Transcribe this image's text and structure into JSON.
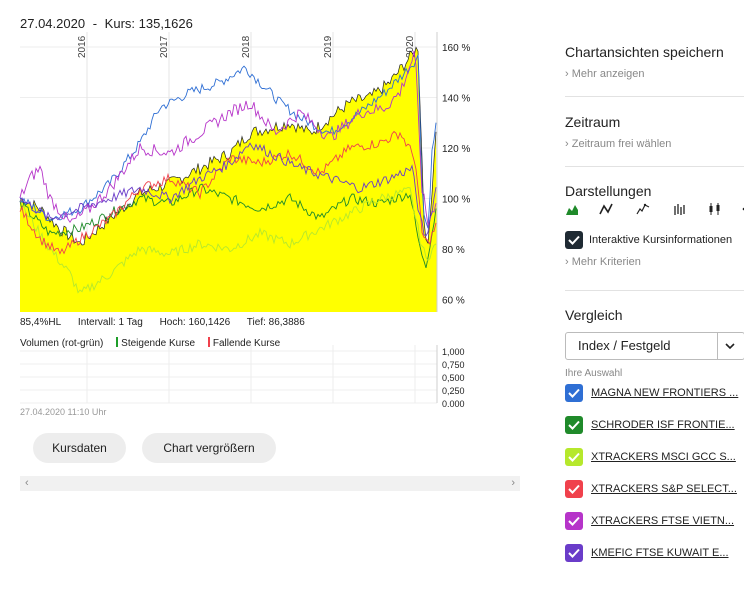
{
  "header": {
    "date": "27.04.2020",
    "separator": "-",
    "kurs": "Kurs: 135,1626"
  },
  "chart": {
    "x_axis_labels": [
      "2016",
      "2017",
      "2018",
      "2019",
      "2020"
    ],
    "y_axis_labels": [
      "160 %",
      "140 %",
      "120 %",
      "100 %",
      "80 %",
      "60 %"
    ],
    "y_range": [
      55,
      162
    ],
    "series_colors": {
      "area": "#ffff00",
      "blue": "#2f6fd4",
      "green": "#1f8a2a",
      "lime": "#b6e82c",
      "red": "#f0414c",
      "magenta": "#b634c9",
      "purple": "#6a3cc9"
    }
  },
  "stats": {
    "hl": "85,4%HL",
    "interval": "Intervall: 1 Tag",
    "hoch": "Hoch: 160,1426",
    "tief": "Tief: 86,3886"
  },
  "volume": {
    "label": "Volumen (rot-grün)",
    "rising": "Steigende Kurse",
    "falling": "Fallende Kurse",
    "y_axis_labels": [
      "1,000",
      "0,750",
      "0,500",
      "0,250",
      "0,000"
    ]
  },
  "timestamp": "27.04.2020 11:10 Uhr",
  "buttons": {
    "kursdaten": "Kursdaten",
    "vergroessern": "Chart vergrößern"
  },
  "sidebar": {
    "chartansichten": {
      "title": "Chartansichten speichern",
      "link": "Mehr anzeigen"
    },
    "zeitraum": {
      "title": "Zeitraum",
      "link": "Zeitraum frei wählen"
    },
    "darstellungen": {
      "title": "Darstellungen",
      "interaktive": "Interaktive Kursinformationen",
      "mehr": "Mehr Kriterien"
    },
    "vergleich": {
      "title": "Vergleich",
      "select_value": "Index / Festgeld",
      "ihre_auswahl": "Ihre Auswahl",
      "items": [
        {
          "label": "MAGNA NEW FRONTIERS ...",
          "color": "#2f6fd4"
        },
        {
          "label": "SCHRODER ISF FRONTIE...",
          "color": "#1f8a2a"
        },
        {
          "label": "XTRACKERS MSCI GCC S...",
          "color": "#b6e82c"
        },
        {
          "label": "XTRACKERS S&P SELECT...",
          "color": "#f0414c"
        },
        {
          "label": "XTRACKERS FTSE VIETN...",
          "color": "#b634c9"
        },
        {
          "label": "KMEFIC FTSE KUWAIT E...",
          "color": "#6a3cc9"
        }
      ]
    }
  }
}
